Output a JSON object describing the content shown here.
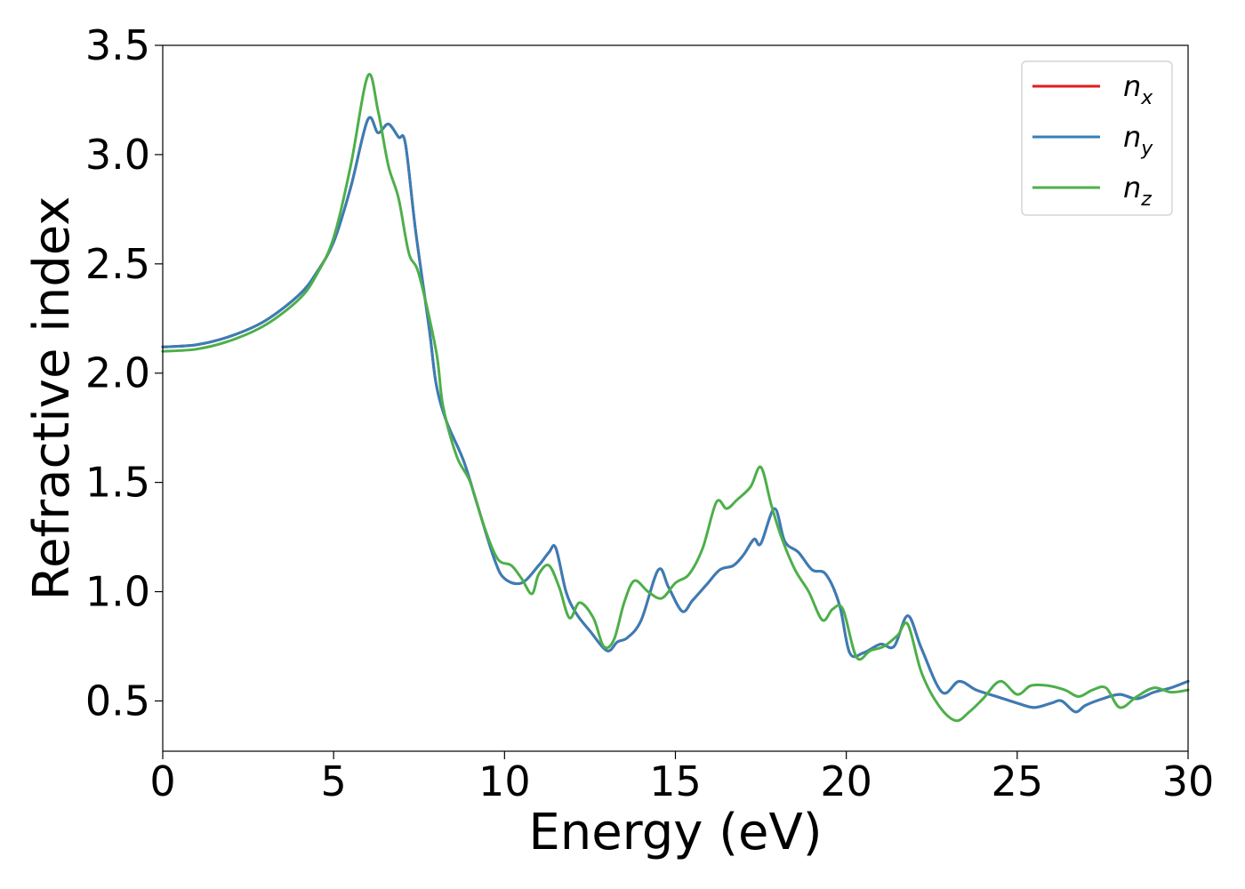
{
  "chart_data": {
    "type": "line",
    "xlabel": "Energy (eV)",
    "ylabel": "Refractive index",
    "xlim": [
      0,
      30
    ],
    "ylim": [
      0.27,
      3.5
    ],
    "xticks": [
      "0",
      "5",
      "10",
      "15",
      "20",
      "25",
      "30"
    ],
    "yticks": [
      "0.5",
      "1.0",
      "1.5",
      "2.0",
      "2.5",
      "3.0",
      "3.5"
    ],
    "grid": false,
    "legend_position": "top-right",
    "series": [
      {
        "name": "n",
        "subscript": "x",
        "color": "#e41a1c",
        "points": [
          [
            0,
            2.12
          ],
          [
            1,
            2.13
          ],
          [
            2,
            2.17
          ],
          [
            3,
            2.24
          ],
          [
            4,
            2.36
          ],
          [
            4.5,
            2.46
          ],
          [
            5,
            2.6
          ],
          [
            5.5,
            2.85
          ],
          [
            6,
            3.16
          ],
          [
            6.3,
            3.1
          ],
          [
            6.6,
            3.14
          ],
          [
            6.9,
            3.08
          ],
          [
            7.1,
            3.05
          ],
          [
            7.4,
            2.65
          ],
          [
            7.8,
            2.2
          ],
          [
            8,
            1.95
          ],
          [
            8.3,
            1.78
          ],
          [
            8.8,
            1.6
          ],
          [
            9.2,
            1.4
          ],
          [
            9.7,
            1.15
          ],
          [
            10,
            1.06
          ],
          [
            10.5,
            1.04
          ],
          [
            11,
            1.12
          ],
          [
            11.3,
            1.18
          ],
          [
            11.5,
            1.2
          ],
          [
            11.8,
            1.0
          ],
          [
            12.1,
            0.9
          ],
          [
            12.5,
            0.82
          ],
          [
            13,
            0.73
          ],
          [
            13.3,
            0.77
          ],
          [
            13.6,
            0.79
          ],
          [
            14,
            0.87
          ],
          [
            14.5,
            1.1
          ],
          [
            14.8,
            1.02
          ],
          [
            15.2,
            0.91
          ],
          [
            15.5,
            0.96
          ],
          [
            15.9,
            1.03
          ],
          [
            16.3,
            1.1
          ],
          [
            16.7,
            1.12
          ],
          [
            17,
            1.17
          ],
          [
            17.3,
            1.24
          ],
          [
            17.5,
            1.22
          ],
          [
            17.9,
            1.38
          ],
          [
            18.2,
            1.23
          ],
          [
            18.6,
            1.18
          ],
          [
            19,
            1.1
          ],
          [
            19.4,
            1.08
          ],
          [
            19.8,
            0.94
          ],
          [
            20.1,
            0.72
          ],
          [
            20.5,
            0.72
          ],
          [
            21,
            0.76
          ],
          [
            21.4,
            0.75
          ],
          [
            21.8,
            0.89
          ],
          [
            22.2,
            0.74
          ],
          [
            22.8,
            0.54
          ],
          [
            23.3,
            0.59
          ],
          [
            23.8,
            0.55
          ],
          [
            24.4,
            0.52
          ],
          [
            25,
            0.49
          ],
          [
            25.5,
            0.47
          ],
          [
            26,
            0.49
          ],
          [
            26.3,
            0.5
          ],
          [
            26.7,
            0.45
          ],
          [
            27,
            0.48
          ],
          [
            27.5,
            0.51
          ],
          [
            28,
            0.53
          ],
          [
            28.5,
            0.51
          ],
          [
            29,
            0.54
          ],
          [
            29.5,
            0.56
          ],
          [
            30,
            0.59
          ]
        ]
      },
      {
        "name": "n",
        "subscript": "y",
        "color": "#377eb8",
        "points": [
          [
            0,
            2.12
          ],
          [
            1,
            2.13
          ],
          [
            2,
            2.17
          ],
          [
            3,
            2.24
          ],
          [
            4,
            2.36
          ],
          [
            4.5,
            2.46
          ],
          [
            5,
            2.6
          ],
          [
            5.5,
            2.85
          ],
          [
            6,
            3.16
          ],
          [
            6.3,
            3.1
          ],
          [
            6.6,
            3.14
          ],
          [
            6.9,
            3.08
          ],
          [
            7.1,
            3.05
          ],
          [
            7.4,
            2.65
          ],
          [
            7.8,
            2.2
          ],
          [
            8,
            1.95
          ],
          [
            8.3,
            1.78
          ],
          [
            8.8,
            1.6
          ],
          [
            9.2,
            1.4
          ],
          [
            9.7,
            1.15
          ],
          [
            10,
            1.06
          ],
          [
            10.5,
            1.04
          ],
          [
            11,
            1.12
          ],
          [
            11.3,
            1.18
          ],
          [
            11.5,
            1.2
          ],
          [
            11.8,
            1.0
          ],
          [
            12.1,
            0.9
          ],
          [
            12.5,
            0.82
          ],
          [
            13,
            0.73
          ],
          [
            13.3,
            0.77
          ],
          [
            13.6,
            0.79
          ],
          [
            14,
            0.87
          ],
          [
            14.5,
            1.1
          ],
          [
            14.8,
            1.02
          ],
          [
            15.2,
            0.91
          ],
          [
            15.5,
            0.96
          ],
          [
            15.9,
            1.03
          ],
          [
            16.3,
            1.1
          ],
          [
            16.7,
            1.12
          ],
          [
            17,
            1.17
          ],
          [
            17.3,
            1.24
          ],
          [
            17.5,
            1.22
          ],
          [
            17.9,
            1.38
          ],
          [
            18.2,
            1.23
          ],
          [
            18.6,
            1.18
          ],
          [
            19,
            1.1
          ],
          [
            19.4,
            1.08
          ],
          [
            19.8,
            0.94
          ],
          [
            20.1,
            0.72
          ],
          [
            20.5,
            0.72
          ],
          [
            21,
            0.76
          ],
          [
            21.4,
            0.75
          ],
          [
            21.8,
            0.89
          ],
          [
            22.2,
            0.74
          ],
          [
            22.8,
            0.54
          ],
          [
            23.3,
            0.59
          ],
          [
            23.8,
            0.55
          ],
          [
            24.4,
            0.52
          ],
          [
            25,
            0.49
          ],
          [
            25.5,
            0.47
          ],
          [
            26,
            0.49
          ],
          [
            26.3,
            0.5
          ],
          [
            26.7,
            0.45
          ],
          [
            27,
            0.48
          ],
          [
            27.5,
            0.51
          ],
          [
            28,
            0.53
          ],
          [
            28.5,
            0.51
          ],
          [
            29,
            0.54
          ],
          [
            29.5,
            0.56
          ],
          [
            30,
            0.59
          ]
        ]
      },
      {
        "name": "n",
        "subscript": "z",
        "color": "#4daf4a",
        "points": [
          [
            0,
            2.1
          ],
          [
            1,
            2.11
          ],
          [
            2,
            2.15
          ],
          [
            3,
            2.22
          ],
          [
            4,
            2.34
          ],
          [
            4.5,
            2.45
          ],
          [
            5,
            2.62
          ],
          [
            5.5,
            2.95
          ],
          [
            6,
            3.36
          ],
          [
            6.3,
            3.2
          ],
          [
            6.6,
            2.95
          ],
          [
            6.9,
            2.8
          ],
          [
            7.2,
            2.55
          ],
          [
            7.5,
            2.45
          ],
          [
            8,
            2.1
          ],
          [
            8.2,
            1.85
          ],
          [
            8.6,
            1.62
          ],
          [
            9,
            1.5
          ],
          [
            9.4,
            1.3
          ],
          [
            9.8,
            1.15
          ],
          [
            10.2,
            1.12
          ],
          [
            10.5,
            1.06
          ],
          [
            10.8,
            0.99
          ],
          [
            11,
            1.08
          ],
          [
            11.3,
            1.12
          ],
          [
            11.6,
            1.02
          ],
          [
            11.9,
            0.88
          ],
          [
            12.2,
            0.95
          ],
          [
            12.6,
            0.88
          ],
          [
            12.9,
            0.75
          ],
          [
            13.2,
            0.78
          ],
          [
            13.5,
            0.95
          ],
          [
            13.8,
            1.05
          ],
          [
            14.2,
            1.0
          ],
          [
            14.6,
            0.97
          ],
          [
            15,
            1.04
          ],
          [
            15.4,
            1.08
          ],
          [
            15.8,
            1.2
          ],
          [
            16.2,
            1.41
          ],
          [
            16.5,
            1.38
          ],
          [
            16.8,
            1.42
          ],
          [
            17.2,
            1.48
          ],
          [
            17.5,
            1.57
          ],
          [
            17.8,
            1.4
          ],
          [
            18.1,
            1.25
          ],
          [
            18.5,
            1.1
          ],
          [
            18.9,
            1.0
          ],
          [
            19.3,
            0.87
          ],
          [
            19.6,
            0.92
          ],
          [
            19.9,
            0.92
          ],
          [
            20.3,
            0.7
          ],
          [
            20.7,
            0.73
          ],
          [
            21.1,
            0.75
          ],
          [
            21.5,
            0.8
          ],
          [
            21.8,
            0.85
          ],
          [
            22.2,
            0.63
          ],
          [
            22.7,
            0.48
          ],
          [
            23.2,
            0.41
          ],
          [
            23.6,
            0.45
          ],
          [
            24,
            0.51
          ],
          [
            24.5,
            0.59
          ],
          [
            25,
            0.53
          ],
          [
            25.4,
            0.57
          ],
          [
            25.9,
            0.57
          ],
          [
            26.4,
            0.55
          ],
          [
            26.8,
            0.52
          ],
          [
            27.2,
            0.55
          ],
          [
            27.6,
            0.56
          ],
          [
            28,
            0.47
          ],
          [
            28.5,
            0.52
          ],
          [
            29,
            0.56
          ],
          [
            29.5,
            0.54
          ],
          [
            30,
            0.55
          ]
        ]
      }
    ]
  }
}
